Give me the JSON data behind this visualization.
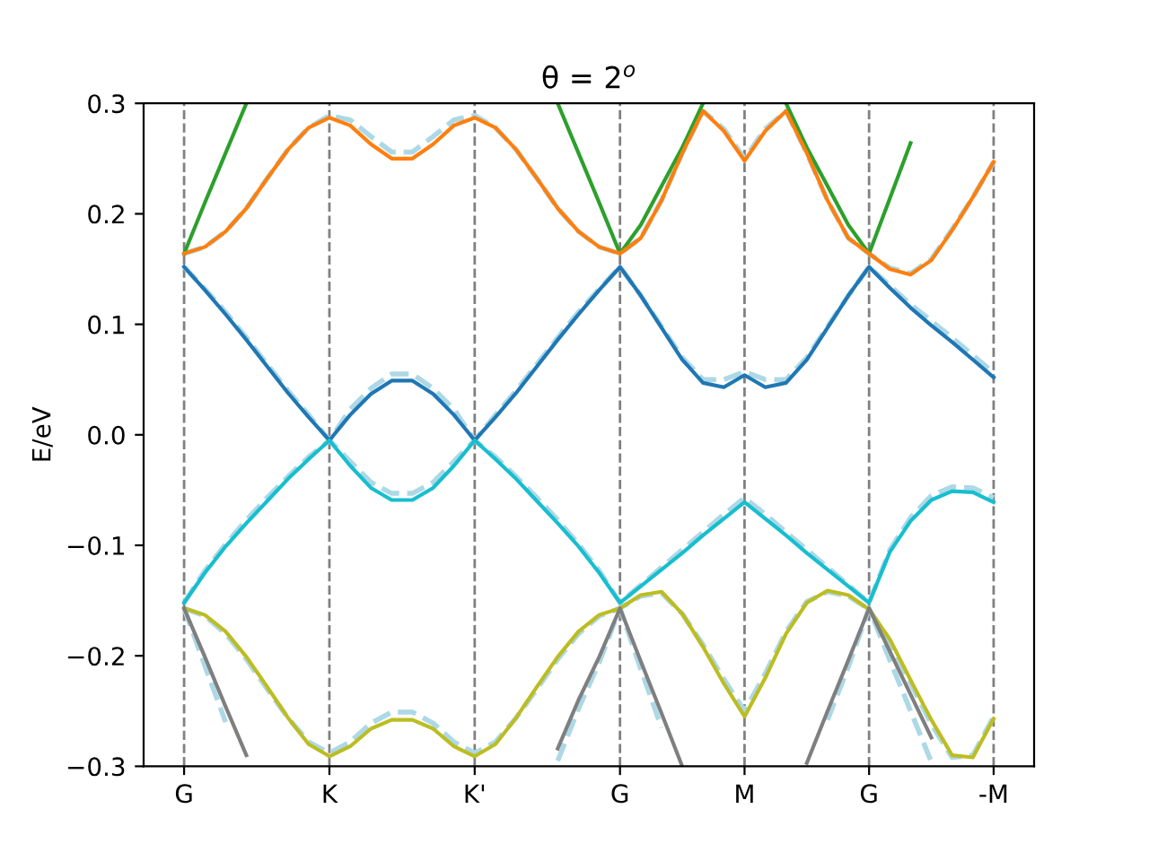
{
  "chart_data": {
    "type": "line",
    "title": "θ = 2$^{o}$",
    "ylabel": "E/eV",
    "categories": [
      "G",
      null,
      null,
      null,
      null,
      null,
      null,
      "K",
      null,
      null,
      null,
      null,
      null,
      null,
      "K'",
      null,
      null,
      null,
      null,
      null,
      null,
      "G",
      null,
      null,
      null,
      null,
      null,
      "M",
      null,
      null,
      null,
      null,
      null,
      "G",
      null,
      null,
      null,
      null,
      null,
      "-M"
    ],
    "ylim": [
      -0.3,
      0.3
    ],
    "yticks": [
      -0.3,
      -0.2,
      -0.1,
      {
        "value": 0,
        "label": "0.0"
      },
      0.1,
      0.2,
      0.3
    ],
    "grid": "x",
    "series": [
      {
        "color": "#add8e6",
        "line_style": "dashed",
        "values": [
          0.164,
          0.17,
          0.184,
          0.205,
          0.232,
          0.258,
          0.278,
          0.289,
          0.285,
          0.27,
          0.256,
          0.256,
          0.27,
          0.285,
          0.289,
          0.278,
          0.258,
          0.232,
          0.205,
          0.184,
          0.17,
          0.164,
          0.178,
          0.212,
          0.255,
          0.293,
          0.277,
          0.25,
          0.277,
          0.293,
          0.255,
          0.212,
          0.178,
          0.164,
          0.151,
          0.146,
          0.159,
          0.186,
          0.215,
          0.247
        ]
      },
      {
        "color": "#add8e6",
        "line_style": "dashed",
        "values": [
          0.152,
          0.132,
          0.111,
          0.088,
          0.064,
          0.04,
          0.018,
          -0.005,
          0.023,
          0.042,
          0.055,
          0.055,
          0.042,
          0.023,
          -0.005,
          0.018,
          0.04,
          0.064,
          0.088,
          0.111,
          0.132,
          0.152,
          0.126,
          0.098,
          0.07,
          0.05,
          0.05,
          0.057,
          0.05,
          0.05,
          0.07,
          0.098,
          0.126,
          0.152,
          0.135,
          0.118,
          0.103,
          0.088,
          0.072,
          0.056
        ]
      },
      {
        "color": "#add8e6",
        "line_style": "dashed",
        "values": [
          -0.152,
          -0.123,
          -0.099,
          -0.077,
          -0.057,
          -0.038,
          -0.02,
          -0.005,
          -0.024,
          -0.043,
          -0.053,
          -0.053,
          -0.043,
          -0.024,
          -0.005,
          -0.02,
          -0.038,
          -0.057,
          -0.077,
          -0.099,
          -0.123,
          -0.152,
          -0.136,
          -0.12,
          -0.104,
          -0.088,
          -0.072,
          -0.057,
          -0.072,
          -0.088,
          -0.104,
          -0.12,
          -0.136,
          -0.152,
          -0.104,
          -0.075,
          -0.055,
          -0.047,
          -0.048,
          -0.057
        ]
      },
      {
        "color": "#add8e6",
        "line_style": "dashed",
        "values": [
          -0.157,
          -0.164,
          -0.18,
          -0.203,
          -0.23,
          -0.256,
          -0.278,
          -0.288,
          -0.278,
          -0.261,
          -0.251,
          -0.251,
          -0.261,
          -0.278,
          -0.288,
          -0.278,
          -0.256,
          -0.23,
          -0.203,
          -0.18,
          -0.164,
          -0.157,
          -0.146,
          -0.143,
          -0.162,
          -0.19,
          -0.221,
          -0.25,
          -0.216,
          -0.178,
          -0.151,
          -0.142,
          -0.146,
          -0.158,
          -0.187,
          -0.225,
          -0.262,
          -0.292,
          -0.29,
          -0.255
        ]
      },
      {
        "color": "#add8e6",
        "line_style": "dashed",
        "values": [
          -0.157,
          -0.209,
          -0.26,
          null,
          null,
          null,
          null,
          null,
          null,
          null,
          null,
          null,
          null,
          null,
          null,
          null,
          null,
          null,
          -0.295,
          -0.248,
          -0.206,
          -0.157,
          -0.212,
          -0.265,
          null,
          null,
          null,
          null,
          null,
          null,
          null,
          -0.258,
          -0.21,
          -0.157,
          -0.204,
          -0.25,
          -0.296,
          null,
          null,
          null
        ]
      },
      {
        "color": "#2ca02c",
        "line_style": "solid",
        "values": [
          0.164,
          0.21,
          0.255,
          0.3,
          null,
          null,
          null,
          null,
          null,
          null,
          null,
          null,
          null,
          null,
          null,
          null,
          null,
          null,
          0.3,
          0.255,
          0.21,
          0.164,
          0.19,
          0.225,
          0.26,
          0.3,
          null,
          null,
          null,
          0.3,
          0.26,
          0.225,
          0.19,
          0.164,
          0.214,
          0.264,
          null,
          null,
          null,
          null
        ]
      },
      {
        "color": "#ff7f0e",
        "line_style": "solid",
        "values": [
          0.164,
          0.17,
          0.184,
          0.205,
          0.232,
          0.258,
          0.278,
          0.287,
          0.28,
          0.263,
          0.25,
          0.25,
          0.263,
          0.28,
          0.287,
          0.278,
          0.258,
          0.232,
          0.205,
          0.184,
          0.17,
          0.164,
          0.178,
          0.212,
          0.255,
          0.293,
          0.275,
          0.248,
          0.275,
          0.293,
          0.255,
          0.212,
          0.178,
          0.164,
          0.15,
          0.145,
          0.158,
          0.185,
          0.215,
          0.247
        ]
      },
      {
        "color": "#1f77b4",
        "line_style": "solid",
        "values": [
          0.152,
          0.131,
          0.109,
          0.086,
          0.062,
          0.038,
          0.016,
          -0.005,
          0.018,
          0.037,
          0.049,
          0.049,
          0.037,
          0.018,
          -0.005,
          0.016,
          0.038,
          0.062,
          0.086,
          0.109,
          0.131,
          0.152,
          0.126,
          0.097,
          0.068,
          0.047,
          0.043,
          0.054,
          0.043,
          0.047,
          0.068,
          0.097,
          0.126,
          0.152,
          0.133,
          0.115,
          0.099,
          0.084,
          0.068,
          0.052
        ]
      },
      {
        "color": "#17becf",
        "line_style": "solid",
        "values": [
          -0.152,
          -0.125,
          -0.101,
          -0.08,
          -0.06,
          -0.04,
          -0.022,
          -0.005,
          -0.028,
          -0.048,
          -0.059,
          -0.059,
          -0.048,
          -0.028,
          -0.005,
          -0.022,
          -0.04,
          -0.06,
          -0.08,
          -0.101,
          -0.125,
          -0.152,
          -0.137,
          -0.122,
          -0.107,
          -0.091,
          -0.076,
          -0.061,
          -0.076,
          -0.091,
          -0.107,
          -0.122,
          -0.137,
          -0.152,
          -0.106,
          -0.078,
          -0.059,
          -0.051,
          -0.052,
          -0.061
        ]
      },
      {
        "color": "#bcbd22",
        "line_style": "solid",
        "values": [
          -0.157,
          -0.163,
          -0.178,
          -0.201,
          -0.228,
          -0.256,
          -0.28,
          -0.291,
          -0.282,
          -0.266,
          -0.258,
          -0.258,
          -0.266,
          -0.282,
          -0.291,
          -0.28,
          -0.256,
          -0.228,
          -0.201,
          -0.178,
          -0.163,
          -0.157,
          -0.145,
          -0.142,
          -0.162,
          -0.192,
          -0.225,
          -0.255,
          -0.22,
          -0.18,
          -0.152,
          -0.141,
          -0.145,
          -0.158,
          -0.185,
          -0.222,
          -0.258,
          -0.29,
          -0.292,
          -0.257
        ]
      },
      {
        "color": "#7f7f7f",
        "line_style": "solid",
        "values": [
          -0.157,
          -0.201,
          -0.246,
          -0.29,
          null,
          null,
          null,
          null,
          null,
          null,
          null,
          null,
          null,
          null,
          null,
          null,
          null,
          null,
          -0.284,
          -0.24,
          -0.201,
          -0.157,
          -0.205,
          -0.252,
          -0.3,
          null,
          null,
          null,
          null,
          null,
          -0.297,
          -0.25,
          -0.204,
          -0.157,
          -0.196,
          -0.235,
          -0.274,
          null,
          null,
          null
        ]
      }
    ]
  }
}
